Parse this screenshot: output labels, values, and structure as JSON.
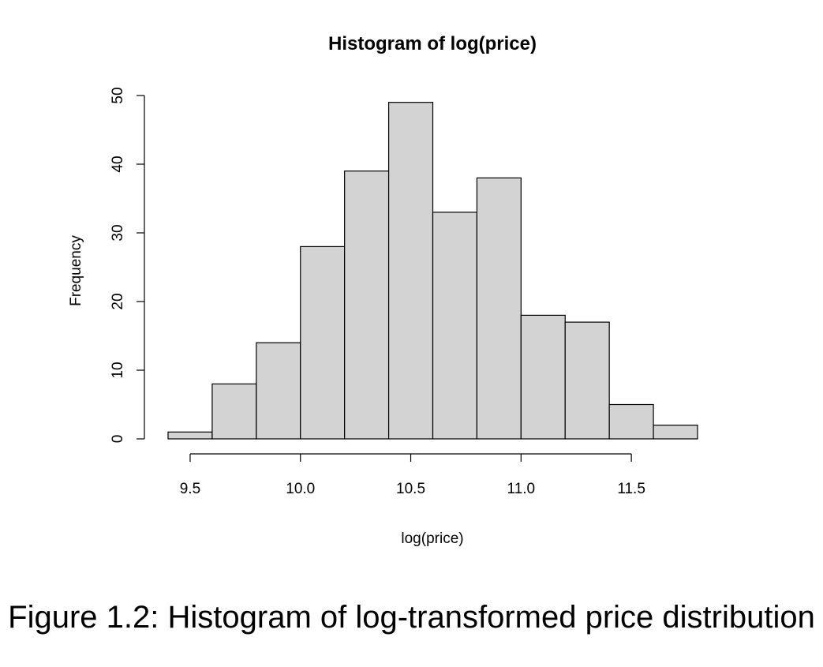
{
  "chart_data": {
    "type": "bar",
    "title": "Histogram of log(price)",
    "xlabel": "log(price)",
    "ylabel": "Frequency",
    "bins": [
      {
        "start": 9.4,
        "end": 9.6,
        "count": 1
      },
      {
        "start": 9.6,
        "end": 9.8,
        "count": 8
      },
      {
        "start": 9.8,
        "end": 10.0,
        "count": 14
      },
      {
        "start": 10.0,
        "end": 10.2,
        "count": 28
      },
      {
        "start": 10.2,
        "end": 10.4,
        "count": 39
      },
      {
        "start": 10.4,
        "end": 10.6,
        "count": 49
      },
      {
        "start": 10.6,
        "end": 10.8,
        "count": 33
      },
      {
        "start": 10.8,
        "end": 11.0,
        "count": 38
      },
      {
        "start": 11.0,
        "end": 11.2,
        "count": 18
      },
      {
        "start": 11.2,
        "end": 11.4,
        "count": 17
      },
      {
        "start": 11.4,
        "end": 11.6,
        "count": 5
      },
      {
        "start": 11.6,
        "end": 11.8,
        "count": 2
      }
    ],
    "xlim": [
      9.4,
      11.8
    ],
    "ylim": [
      0,
      50
    ],
    "x_ticks": [
      9.5,
      10.0,
      10.5,
      11.0,
      11.5
    ],
    "x_tick_labels": [
      "9.5",
      "10.0",
      "10.5",
      "11.0",
      "11.5"
    ],
    "y_ticks": [
      0,
      10,
      20,
      30,
      40,
      50
    ],
    "y_tick_labels": [
      "0",
      "10",
      "20",
      "30",
      "40",
      "50"
    ],
    "bar_color": "#d3d3d3",
    "grid": false
  },
  "caption": "Figure 1.2: Histogram of log-transformed price distribution"
}
